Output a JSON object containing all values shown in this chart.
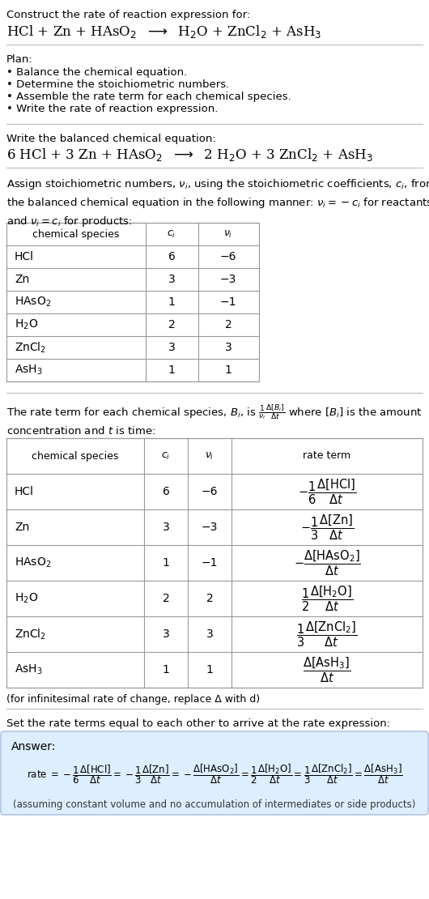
{
  "title_line1": "Construct the rate of reaction expression for:",
  "plan_header": "Plan:",
  "plan_items": [
    "• Balance the chemical equation.",
    "• Determine the stoichiometric numbers.",
    "• Assemble the rate term for each chemical species.",
    "• Write the rate of reaction expression."
  ],
  "balanced_header": "Write the balanced chemical equation:",
  "table1_data": [
    [
      "HCl",
      "6",
      "−6"
    ],
    [
      "Zn",
      "3",
      "−3"
    ],
    [
      "HAsO$_2$",
      "1",
      "−1"
    ],
    [
      "H$_2$O",
      "2",
      "2"
    ],
    [
      "ZnCl$_2$",
      "3",
      "3"
    ],
    [
      "AsH$_3$",
      "1",
      "1"
    ]
  ],
  "table2_data": [
    [
      "HCl",
      "6",
      "−6"
    ],
    [
      "Zn",
      "3",
      "−3"
    ],
    [
      "HAsO$_2$",
      "1",
      "−1"
    ],
    [
      "H$_2$O",
      "2",
      "2"
    ],
    [
      "ZnCl$_2$",
      "3",
      "3"
    ],
    [
      "AsH$_3$",
      "1",
      "1"
    ]
  ],
  "infinitesimal_note": "(for infinitesimal rate of change, replace Δ with d)",
  "set_equal_text": "Set the rate terms equal to each other to arrive at the rate expression:",
  "answer_label": "Answer:",
  "answer_box_color": "#ddeeff",
  "answer_box_border": "#aabbdd",
  "answer_footnote": "(assuming constant volume and no accumulation of intermediates or side products)",
  "bg_color": "#ffffff",
  "table_border_color": "#999999"
}
